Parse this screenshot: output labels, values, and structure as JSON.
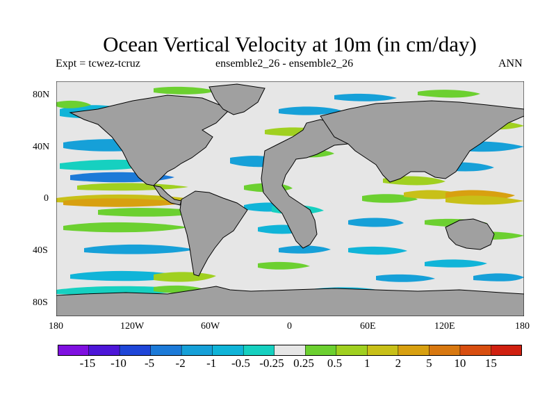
{
  "title": "Ocean Vertical Velocity at 10m (in cm/day)",
  "expt_label": "Expt = tcwez-tcruz",
  "ensemble_label": "ensemble2_26 - ensemble2_26",
  "period_label": "ANN",
  "lat_ticks": [
    "80N",
    "40N",
    "0",
    "40S",
    "80S"
  ],
  "lon_ticks": [
    "180",
    "120W",
    "60W",
    "0",
    "60E",
    "120E",
    "180"
  ],
  "colorbar_labels": [
    "-15",
    "-10",
    "-5",
    "-2",
    "-1",
    "-0.5",
    "-0.25",
    "0.25",
    "0.5",
    "1",
    "2",
    "5",
    "10",
    "15"
  ],
  "colors": {
    "land": "#a0a0a0",
    "ocean_neutral": "#e6e6e6",
    "coastline": "#000000",
    "colorbar": [
      "#7f10e0",
      "#4d16d8",
      "#1f46d8",
      "#1c7ad8",
      "#16a0d8",
      "#10b4d8",
      "#16d0c0",
      "#e6e6e6",
      "#6cd030",
      "#a0d020",
      "#c8c018",
      "#d8a010",
      "#d87810",
      "#d84e10",
      "#d02010"
    ]
  }
}
